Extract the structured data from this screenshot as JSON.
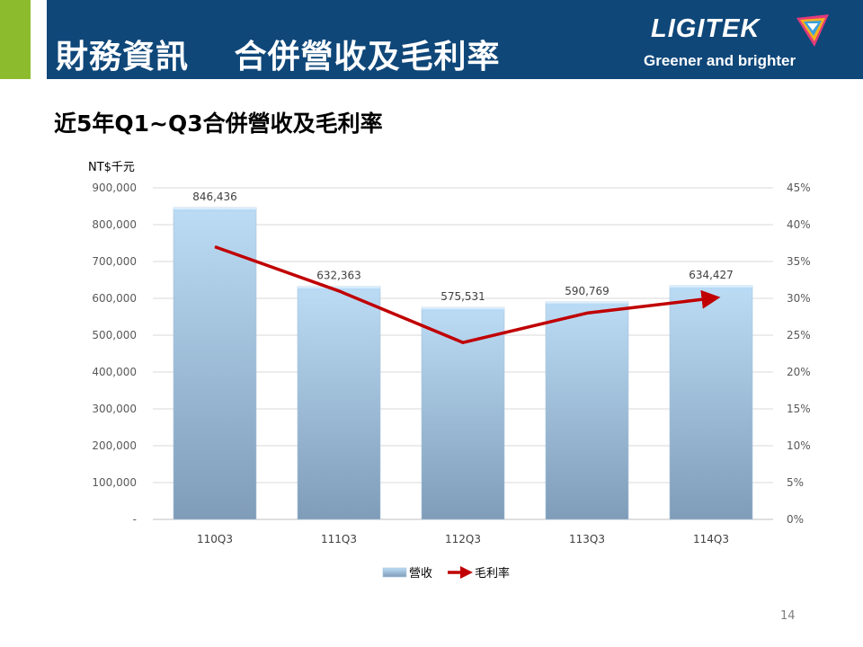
{
  "header": {
    "title": "財務資訊　 合併營收及毛利率",
    "logo_name": "LIGITEK",
    "logo_tagline": "Greener and brighter"
  },
  "colors": {
    "header_bg": "#0f4779",
    "accent_green": "#8dbb2e",
    "bar_top": "#bcdcf5",
    "bar_bottom": "#7f9cb8",
    "line_red": "#c00000"
  },
  "subtitle": "近5年Q1~Q3合併營收及毛利率",
  "chart_data": {
    "type": "bar",
    "unit_label": "NT$千元",
    "categories": [
      "110Q3",
      "111Q3",
      "112Q3",
      "113Q3",
      "114Q3"
    ],
    "series": [
      {
        "name": "營收",
        "type": "bar",
        "axis": "left",
        "values": [
          846436,
          632363,
          575531,
          590769,
          634427
        ],
        "data_labels": [
          "846,436",
          "632,363",
          "575,531",
          "590,769",
          "634,427"
        ]
      },
      {
        "name": "毛利率",
        "type": "line",
        "axis": "right",
        "values": [
          0.37,
          0.31,
          0.24,
          0.28,
          0.3
        ]
      }
    ],
    "y_left": {
      "min": 0,
      "max": 900000,
      "ticks": [
        0,
        100000,
        200000,
        300000,
        400000,
        500000,
        600000,
        700000,
        800000,
        900000
      ],
      "tick_labels": [
        "-",
        "100,000",
        "200,000",
        "300,000",
        "400,000",
        "500,000",
        "600,000",
        "700,000",
        "800,000",
        "900,000"
      ]
    },
    "y_right": {
      "min": 0,
      "max": 0.45,
      "ticks": [
        0,
        0.05,
        0.1,
        0.15,
        0.2,
        0.25,
        0.3,
        0.35,
        0.4,
        0.45
      ],
      "tick_labels": [
        "0%",
        "5%",
        "10%",
        "15%",
        "20%",
        "25%",
        "30%",
        "35%",
        "40%",
        "45%"
      ]
    },
    "grid": true,
    "legend_position": "bottom"
  },
  "page_number": "14"
}
